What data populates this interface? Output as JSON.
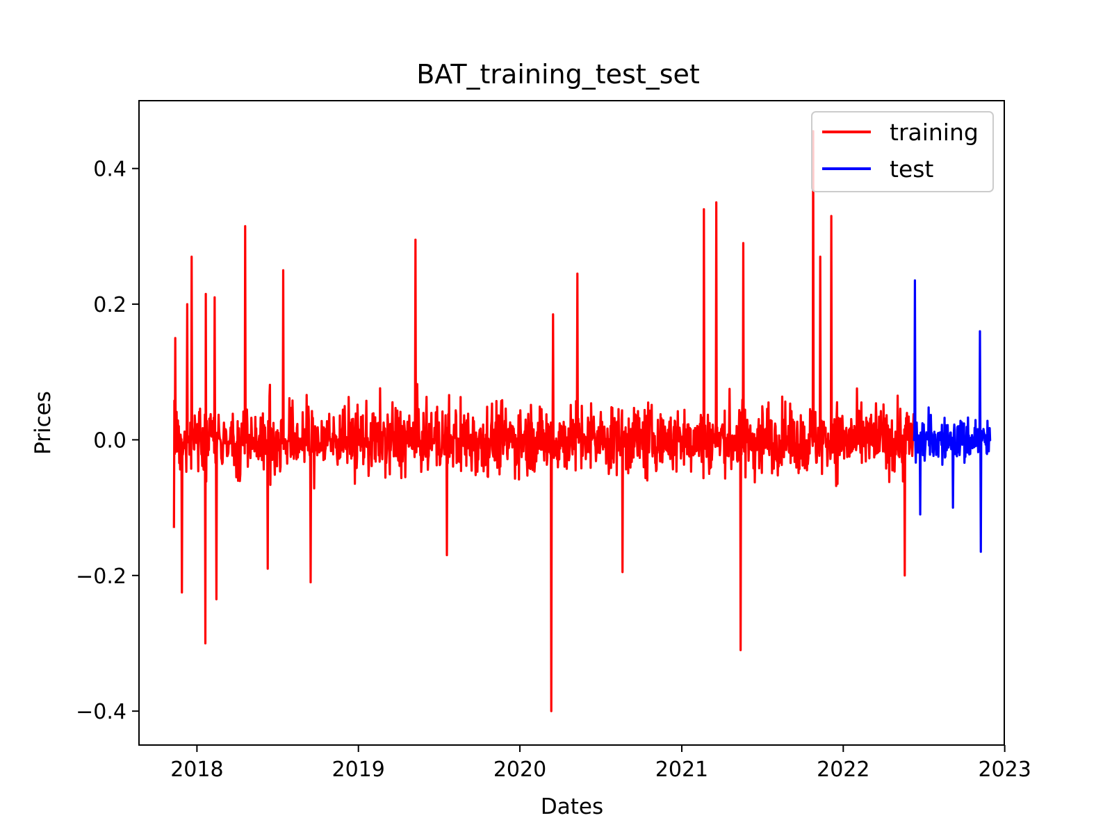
{
  "chart_data": {
    "type": "line",
    "title": "BAT_training_test_set",
    "xlabel": "Dates",
    "ylabel": "Prices",
    "xlim": [
      "2017-08-23",
      "2022-12-31"
    ],
    "ylim": [
      -0.45,
      0.5
    ],
    "x_ticks": [
      {
        "date": "2018-01-01",
        "label": "2018"
      },
      {
        "date": "2019-01-01",
        "label": "2019"
      },
      {
        "date": "2020-01-01",
        "label": "2020"
      },
      {
        "date": "2021-01-01",
        "label": "2021"
      },
      {
        "date": "2022-01-01",
        "label": "2022"
      },
      {
        "date": "2023-01-01",
        "label": "2023"
      }
    ],
    "y_ticks": [
      {
        "value": -0.4,
        "label": "−0.4"
      },
      {
        "value": -0.2,
        "label": "−0.2"
      },
      {
        "value": 0.0,
        "label": "0.0"
      },
      {
        "value": 0.2,
        "label": "0.2"
      },
      {
        "value": 0.4,
        "label": "0.4"
      }
    ],
    "grid": false,
    "legend": {
      "position": "upper-right"
    },
    "series": [
      {
        "name": "training",
        "color": "#ff0000",
        "x_range": [
          "2017-11-10",
          "2022-06-10"
        ],
        "extremes": [
          {
            "date": "2017-11-10",
            "value": -0.13
          },
          {
            "date": "2017-11-13",
            "value": 0.15
          },
          {
            "date": "2017-11-28",
            "value": -0.225
          },
          {
            "date": "2017-12-10",
            "value": 0.2
          },
          {
            "date": "2017-12-20",
            "value": 0.27
          },
          {
            "date": "2018-01-20",
            "value": -0.3
          },
          {
            "date": "2018-01-21",
            "value": 0.215
          },
          {
            "date": "2018-02-10",
            "value": 0.21
          },
          {
            "date": "2018-02-14",
            "value": -0.235
          },
          {
            "date": "2018-04-20",
            "value": 0.315
          },
          {
            "date": "2018-06-10",
            "value": -0.19
          },
          {
            "date": "2018-07-15",
            "value": 0.25
          },
          {
            "date": "2018-09-15",
            "value": -0.21
          },
          {
            "date": "2019-05-10",
            "value": 0.295
          },
          {
            "date": "2019-07-20",
            "value": -0.17
          },
          {
            "date": "2020-03-12",
            "value": -0.4
          },
          {
            "date": "2020-03-16",
            "value": 0.185
          },
          {
            "date": "2020-05-10",
            "value": 0.245
          },
          {
            "date": "2020-08-20",
            "value": -0.195
          },
          {
            "date": "2021-02-20",
            "value": 0.34
          },
          {
            "date": "2021-03-20",
            "value": 0.35
          },
          {
            "date": "2021-05-14",
            "value": -0.31
          },
          {
            "date": "2021-05-20",
            "value": 0.29
          },
          {
            "date": "2021-10-25",
            "value": 0.455
          },
          {
            "date": "2021-11-10",
            "value": 0.27
          },
          {
            "date": "2021-12-05",
            "value": 0.33
          },
          {
            "date": "2022-05-20",
            "value": -0.2
          }
        ]
      },
      {
        "name": "test",
        "color": "#0000ff",
        "x_range": [
          "2022-06-10",
          "2022-11-30"
        ],
        "extremes": [
          {
            "date": "2022-06-12",
            "value": 0.235
          },
          {
            "date": "2022-06-24",
            "value": -0.11
          },
          {
            "date": "2022-09-06",
            "value": -0.1
          },
          {
            "date": "2022-11-06",
            "value": 0.16
          },
          {
            "date": "2022-11-08",
            "value": -0.165
          },
          {
            "date": "2022-11-30",
            "value": 0.0
          }
        ]
      }
    ]
  }
}
